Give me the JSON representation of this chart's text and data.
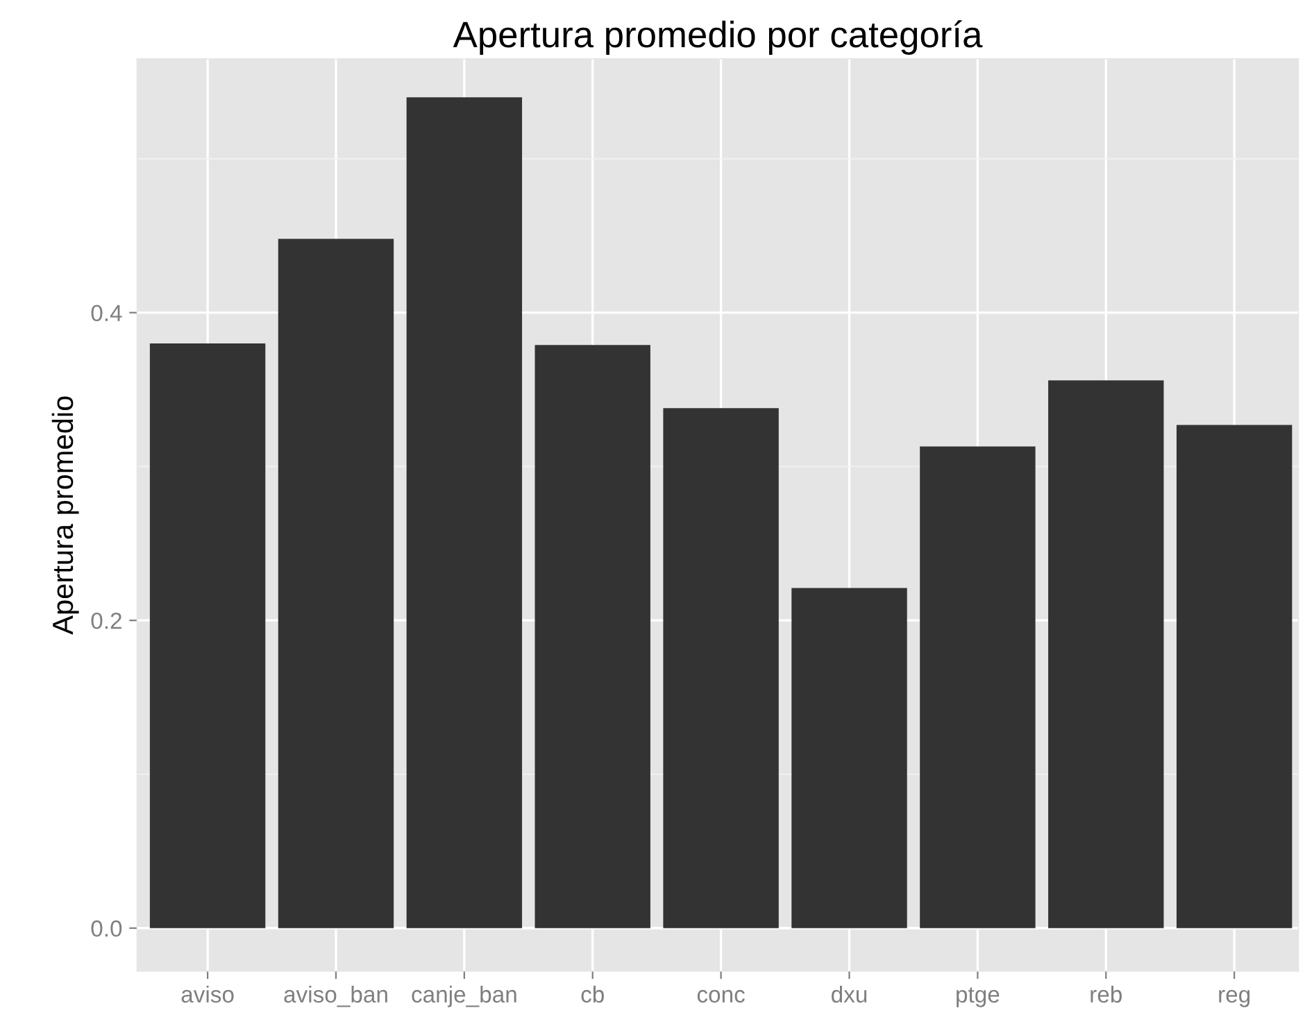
{
  "chart_data": {
    "type": "bar",
    "title": "Apertura promedio por categoría",
    "ylabel": "Apertura promedio",
    "categories": [
      "aviso",
      "aviso_ban",
      "canje_ban",
      "cb",
      "conc",
      "dxu",
      "ptge",
      "reb",
      "reg"
    ],
    "values": [
      0.38,
      0.448,
      0.54,
      0.379,
      0.338,
      0.221,
      0.313,
      0.356,
      0.327
    ],
    "color": "#333333",
    "ylim": [
      -0.028,
      0.565
    ],
    "yticks": [
      {
        "value": 0,
        "label": "0.0"
      },
      {
        "value": 0.1,
        "label": null
      },
      {
        "value": 0.2,
        "label": "0.2"
      },
      {
        "value": 0.3,
        "label": null
      },
      {
        "value": 0.4,
        "label": "0.4"
      },
      {
        "value": 0.5,
        "label": null
      }
    ],
    "grid": true,
    "legend": false
  }
}
